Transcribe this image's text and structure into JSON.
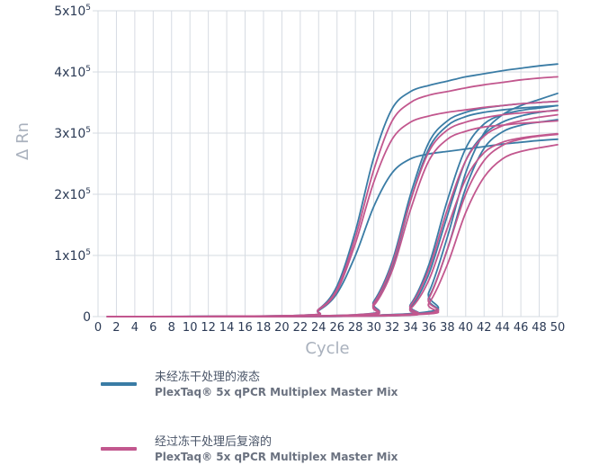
{
  "chart_data": {
    "type": "line",
    "ylabel": "Δ Rn",
    "xlabel": "Cycle",
    "xlim": [
      0,
      50
    ],
    "ylim": [
      0,
      500000
    ],
    "x_ticks": [
      "0",
      "2",
      "4",
      "6",
      "8",
      "10",
      "12",
      "14",
      "16",
      "18",
      "20",
      "22",
      "24",
      "26",
      "28",
      "30",
      "32",
      "34",
      "36",
      "38",
      "40",
      "42",
      "44",
      "46",
      "48",
      "50"
    ],
    "y_ticks": [
      {
        "value": 0,
        "label": "0"
      },
      {
        "value": 100000,
        "label": "1x10",
        "exp": "5"
      },
      {
        "value": 200000,
        "label": "2x10",
        "exp": "5"
      },
      {
        "value": 300000,
        "label": "3x10",
        "exp": "5"
      },
      {
        "value": 400000,
        "label": "4x10",
        "exp": "5"
      },
      {
        "value": 500000,
        "label": "5x10",
        "exp": "5"
      }
    ],
    "grid": true,
    "colors": {
      "series_a": "#3a7ca5",
      "series_b": "#c2578e",
      "grid": "#d6dbe2"
    },
    "series": [
      {
        "group": "a",
        "x": [
          1,
          22,
          24,
          26,
          28,
          30,
          32,
          34,
          36,
          38,
          40,
          42,
          44,
          46,
          48,
          50
        ],
        "y": [
          0,
          2000,
          12000,
          50000,
          140000,
          260000,
          340000,
          368000,
          378000,
          385000,
          392000,
          397000,
          402000,
          406000,
          410000,
          413000
        ]
      },
      {
        "group": "a",
        "x": [
          1,
          22,
          24,
          26,
          28,
          30,
          32,
          34,
          36,
          38,
          40,
          42,
          44,
          46,
          48,
          50
        ],
        "y": [
          0,
          2000,
          10000,
          38000,
          100000,
          180000,
          235000,
          258000,
          266000,
          270000,
          274000,
          278000,
          282000,
          285000,
          288000,
          290000
        ]
      },
      {
        "group": "a",
        "x": [
          1,
          28,
          30,
          32,
          34,
          36,
          38,
          40,
          42,
          44,
          46,
          48,
          50
        ],
        "y": [
          0,
          3000,
          25000,
          90000,
          200000,
          285000,
          320000,
          334000,
          341000,
          345000,
          348000,
          350000,
          352000
        ]
      },
      {
        "group": "a",
        "x": [
          1,
          28,
          30,
          32,
          34,
          36,
          38,
          40,
          42,
          44,
          46,
          48,
          50
        ],
        "y": [
          0,
          2000,
          20000,
          80000,
          190000,
          275000,
          312000,
          327000,
          334000,
          338000,
          341000,
          343000,
          345000
        ]
      },
      {
        "group": "a",
        "x": [
          1,
          32,
          34,
          36,
          38,
          40,
          42,
          44,
          46,
          48,
          50
        ],
        "y": [
          0,
          2000,
          20000,
          85000,
          190000,
          275000,
          315000,
          330000,
          337000,
          341000,
          345000
        ]
      },
      {
        "group": "a",
        "x": [
          1,
          32,
          34,
          36,
          38,
          40,
          42,
          44,
          46,
          48,
          50
        ],
        "y": [
          0,
          1500,
          15000,
          70000,
          165000,
          255000,
          298000,
          318000,
          328000,
          334000,
          338000
        ]
      },
      {
        "group": "a",
        "x": [
          1,
          34,
          36,
          38,
          40,
          42,
          44,
          46,
          48,
          50
        ],
        "y": [
          0,
          5000,
          40000,
          130000,
          235000,
          300000,
          330000,
          345000,
          355000,
          365000
        ]
      },
      {
        "group": "a",
        "x": [
          1,
          34,
          36,
          38,
          40,
          42,
          44,
          46,
          48,
          50
        ],
        "y": [
          0,
          4000,
          32000,
          110000,
          210000,
          275000,
          302000,
          313000,
          318000,
          322000
        ]
      },
      {
        "group": "b",
        "x": [
          1,
          22,
          24,
          26,
          28,
          30,
          32,
          34,
          36,
          38,
          40,
          42,
          44,
          46,
          48,
          50
        ],
        "y": [
          0,
          2000,
          12000,
          45000,
          130000,
          240000,
          320000,
          350000,
          362000,
          368000,
          374000,
          379000,
          383000,
          387000,
          390000,
          392000
        ]
      },
      {
        "group": "b",
        "x": [
          1,
          22,
          24,
          26,
          28,
          30,
          32,
          34,
          36,
          38,
          40,
          42,
          44,
          46,
          48,
          50
        ],
        "y": [
          0,
          2000,
          11000,
          42000,
          120000,
          220000,
          290000,
          318000,
          328000,
          334000,
          338000,
          342000,
          345000,
          348000,
          350000,
          352000
        ]
      },
      {
        "group": "b",
        "x": [
          1,
          28,
          30,
          32,
          34,
          36,
          38,
          40,
          42,
          44,
          46,
          48,
          50
        ],
        "y": [
          0,
          3000,
          22000,
          85000,
          190000,
          270000,
          305000,
          318000,
          325000,
          330000,
          333000,
          335000,
          337000
        ]
      },
      {
        "group": "b",
        "x": [
          1,
          28,
          30,
          32,
          34,
          36,
          38,
          40,
          42,
          44,
          46,
          48,
          50
        ],
        "y": [
          0,
          2000,
          18000,
          75000,
          175000,
          255000,
          290000,
          303000,
          310000,
          313000,
          316000,
          318000,
          320000
        ]
      },
      {
        "group": "b",
        "x": [
          1,
          32,
          34,
          36,
          38,
          40,
          42,
          44,
          46,
          48,
          50
        ],
        "y": [
          0,
          2000,
          18000,
          78000,
          175000,
          255000,
          295000,
          312000,
          320000,
          326000,
          330000
        ]
      },
      {
        "group": "b",
        "x": [
          1,
          32,
          34,
          36,
          38,
          40,
          42,
          44,
          46,
          48,
          50
        ],
        "y": [
          0,
          1500,
          13000,
          60000,
          145000,
          225000,
          268000,
          285000,
          292000,
          296000,
          299000
        ]
      },
      {
        "group": "b",
        "x": [
          1,
          34,
          36,
          38,
          40,
          42,
          44,
          46,
          48,
          50
        ],
        "y": [
          0,
          4000,
          30000,
          110000,
          200000,
          255000,
          280000,
          290000,
          295000,
          298000
        ]
      },
      {
        "group": "b",
        "x": [
          1,
          34,
          36,
          38,
          40,
          42,
          44,
          46,
          48,
          50
        ],
        "y": [
          0,
          3000,
          22000,
          85000,
          170000,
          228000,
          258000,
          270000,
          276000,
          281000
        ]
      }
    ]
  },
  "legend": [
    {
      "line1": "未经冻干处理的液态",
      "line2": "PlexTaq® 5x qPCR Multiplex Master Mix",
      "color": "#3a7ca5"
    },
    {
      "line1": "经过冻干处理后复溶的",
      "line2": "PlexTaq® 5x qPCR Multiplex Master Mix",
      "color": "#c2578e"
    }
  ]
}
